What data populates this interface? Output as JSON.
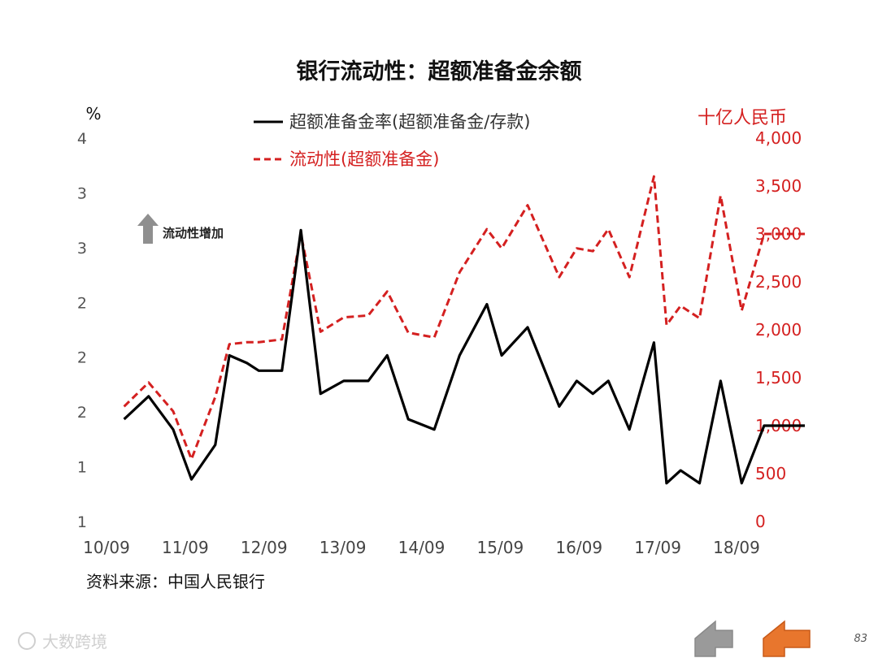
{
  "chart_data": {
    "type": "line",
    "title": "银行流动性：超额准备金余额",
    "x_ticks": [
      "10/09",
      "11/09",
      "12/09",
      "13/09",
      "14/09",
      "15/09",
      "16/09",
      "17/09",
      "18/09"
    ],
    "y_left": {
      "unit": "%",
      "tick_labels": [
        "1",
        "1",
        "2",
        "2",
        "2",
        "3",
        "3",
        "4"
      ],
      "range": [
        1.0,
        4.0
      ]
    },
    "y_right": {
      "unit": "十亿人民币",
      "tick_labels": [
        "0",
        "500",
        "1,000",
        "1,500",
        "2,000",
        "2,500",
        "3,000",
        "3,500",
        "4,000"
      ],
      "range": [
        0,
        4000
      ]
    },
    "series": [
      {
        "name": "超额准备金率(超额准备金/存款)",
        "axis": "left",
        "color": "#000000",
        "style": "solid",
        "x": [
          2010.0,
          2010.35,
          2010.7,
          2010.96,
          2011.3,
          2011.5,
          2011.75,
          2011.92,
          2012.25,
          2012.52,
          2012.8,
          2013.13,
          2013.48,
          2013.75,
          2014.05,
          2014.42,
          2014.78,
          2015.17,
          2015.38,
          2015.75,
          2016.2,
          2016.45,
          2016.68,
          2016.9,
          2017.2,
          2017.55,
          2017.73,
          2017.93,
          2018.2,
          2018.5,
          2018.8,
          2019.12,
          2019.35,
          2019.7
        ],
        "values": [
          1.8,
          1.98,
          1.72,
          1.33,
          1.6,
          2.3,
          2.24,
          2.18,
          2.18,
          3.28,
          2.0,
          2.1,
          2.1,
          2.3,
          1.8,
          1.72,
          2.3,
          2.7,
          2.3,
          2.52,
          1.9,
          2.1,
          2.0,
          2.1,
          1.72,
          2.4,
          1.3,
          1.4,
          1.3,
          2.1,
          1.3,
          1.75,
          1.75,
          1.75
        ]
      },
      {
        "name": "流动性(超额准备金)",
        "axis": "right",
        "color": "#d42020",
        "style": "dashed",
        "x": [
          2010.0,
          2010.35,
          2010.7,
          2010.96,
          2011.3,
          2011.5,
          2011.75,
          2011.92,
          2012.25,
          2012.52,
          2012.8,
          2013.13,
          2013.48,
          2013.75,
          2014.05,
          2014.42,
          2014.78,
          2015.17,
          2015.38,
          2015.75,
          2016.2,
          2016.45,
          2016.68,
          2016.9,
          2017.2,
          2017.55,
          2017.73,
          2017.93,
          2018.2,
          2018.5,
          2018.8,
          2019.12,
          2019.35,
          2019.7
        ],
        "values": [
          1200,
          1450,
          1150,
          650,
          1300,
          1850,
          1870,
          1870,
          1900,
          3000,
          1980,
          2130,
          2150,
          2400,
          1970,
          1920,
          2600,
          3050,
          2850,
          3300,
          2550,
          2850,
          2820,
          3050,
          2550,
          3600,
          2050,
          2250,
          2120,
          3400,
          2200,
          3000,
          3000,
          3000
        ]
      }
    ],
    "annotation": "流动性增加",
    "legend_position": "top-center",
    "grid": false
  },
  "source": "资料来源：中国人民银行",
  "watermark": "大数跨境",
  "page_number": "83",
  "nav": {
    "prev_color": "#9a9a9a",
    "next_color": "#e8762d"
  }
}
